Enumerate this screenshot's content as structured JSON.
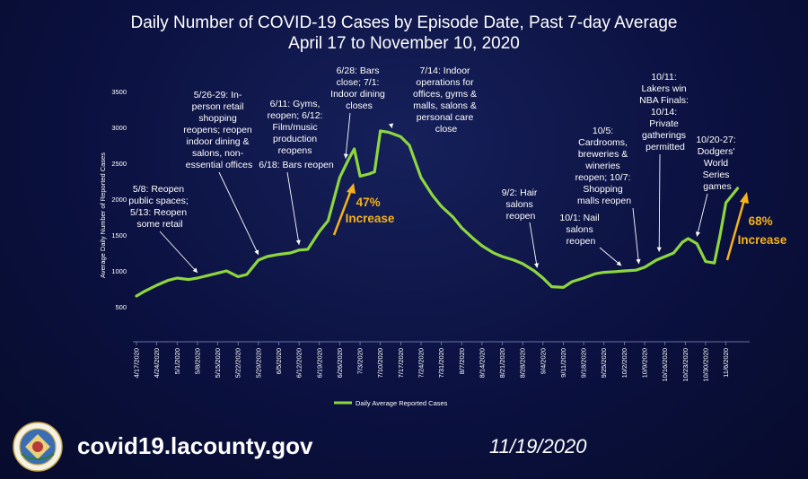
{
  "header": {
    "title_line1": "Daily Number of COVID-19 Cases by Episode Date, Past 7-day Average",
    "title_line2": "April 17 to November 10, 2020"
  },
  "footer": {
    "url": "covid19.lacounty.gov",
    "date": "11/19/2020"
  },
  "colors": {
    "line": "#8ed63f",
    "arrow": "#f5b21a",
    "background": "#0b1140"
  },
  "chart_data": {
    "type": "line",
    "title": "Daily Number of COVID-19 Cases by Episode Date, Past 7-day Average",
    "subtitle": "April 17 to November 10, 2020",
    "ylabel": "Average Daily Number of Reported Cases",
    "xlabel": "",
    "ylim": [
      0,
      3500
    ],
    "yticks": [
      500,
      1000,
      1500,
      2000,
      2500,
      3000,
      3500
    ],
    "xlim": [
      "2020-04-17",
      "2020-11-12"
    ],
    "xticks": [
      "4/17/2020",
      "4/24/2020",
      "5/1/2020",
      "5/8/2020",
      "5/15/2020",
      "5/22/2020",
      "5/29/2020",
      "6/5/2020",
      "6/12/2020",
      "6/19/2020",
      "6/26/2020",
      "7/3/2020",
      "7/10/2020",
      "7/17/2020",
      "7/24/2020",
      "7/31/2020",
      "8/7/2020",
      "8/14/2020",
      "8/21/2020",
      "8/28/2020",
      "9/4/2020",
      "9/11/2020",
      "9/18/2020",
      "9/25/2020",
      "10/2/2020",
      "10/9/2020",
      "10/16/2020",
      "10/23/2020",
      "10/30/2020",
      "11/6/2020"
    ],
    "grid": false,
    "legend_position": "bottom",
    "series": [
      {
        "name": "Daily Average Reported Cases",
        "x": [
          "2020-04-17",
          "2020-04-20",
          "2020-04-24",
          "2020-04-28",
          "2020-05-01",
          "2020-05-05",
          "2020-05-08",
          "2020-05-12",
          "2020-05-15",
          "2020-05-18",
          "2020-05-22",
          "2020-05-25",
          "2020-05-29",
          "2020-06-01",
          "2020-06-05",
          "2020-06-09",
          "2020-06-12",
          "2020-06-15",
          "2020-06-19",
          "2020-06-22",
          "2020-06-26",
          "2020-06-29",
          "2020-07-01",
          "2020-07-03",
          "2020-07-06",
          "2020-07-08",
          "2020-07-10",
          "2020-07-13",
          "2020-07-15",
          "2020-07-17",
          "2020-07-20",
          "2020-07-24",
          "2020-07-28",
          "2020-07-31",
          "2020-08-04",
          "2020-08-07",
          "2020-08-11",
          "2020-08-14",
          "2020-08-18",
          "2020-08-21",
          "2020-08-25",
          "2020-08-28",
          "2020-09-01",
          "2020-09-04",
          "2020-09-07",
          "2020-09-11",
          "2020-09-14",
          "2020-09-18",
          "2020-09-22",
          "2020-09-25",
          "2020-09-29",
          "2020-10-02",
          "2020-10-06",
          "2020-10-09",
          "2020-10-13",
          "2020-10-16",
          "2020-10-19",
          "2020-10-22",
          "2020-10-24",
          "2020-10-27",
          "2020-10-30",
          "2020-11-02",
          "2020-11-04",
          "2020-11-06",
          "2020-11-08",
          "2020-11-10"
        ],
        "values": [
          650,
          720,
          800,
          870,
          900,
          880,
          900,
          940,
          970,
          1000,
          920,
          950,
          1150,
          1200,
          1230,
          1250,
          1290,
          1300,
          1550,
          1700,
          2300,
          2550,
          2700,
          2320,
          2350,
          2380,
          2950,
          2930,
          2900,
          2870,
          2750,
          2300,
          2050,
          1900,
          1750,
          1600,
          1450,
          1350,
          1250,
          1200,
          1150,
          1100,
          1000,
          900,
          780,
          770,
          850,
          900,
          960,
          980,
          990,
          1000,
          1010,
          1050,
          1150,
          1200,
          1250,
          1400,
          1450,
          1380,
          1130,
          1110,
          1500,
          1950,
          2050,
          2150
        ]
      }
    ],
    "annotations": [
      {
        "x": "2020-05-08",
        "text": "5/8: Reopen public spaces; 5/13: Reopen some retail"
      },
      {
        "x": "2020-05-29",
        "text": "5/26-29: In-person retail shopping reopens; reopen indoor dining & salons, non-essential offices"
      },
      {
        "x": "2020-06-12",
        "text": "6/11: Gyms, reopen; 6/12: Film/music production reopens 6/18: Bars reopen"
      },
      {
        "x": "2020-06-28",
        "text": "6/28: Bars close; 7/1: Indoor dining closes"
      },
      {
        "x": "2020-07-14",
        "text": "7/14: Indoor operations for offices, gyms & malls, salons & personal care close"
      },
      {
        "x": "2020-09-02",
        "text": "9/2: Hair salons reopen"
      },
      {
        "x": "2020-10-01",
        "text": "10/1: Nail salons reopen"
      },
      {
        "x": "2020-10-07",
        "text": "10/5: Cardrooms, breweries & wineries reopen; 10/7: Shopping malls reopen"
      },
      {
        "x": "2020-10-14",
        "text": "10/11: Lakers win NBA Finals: 10/14: Private gatherings permitted"
      },
      {
        "x": "2020-10-27",
        "text": "10/20-27: Dodgers' World Series games"
      },
      {
        "text": "47% Increase"
      },
      {
        "text": "68% Increase"
      }
    ]
  }
}
